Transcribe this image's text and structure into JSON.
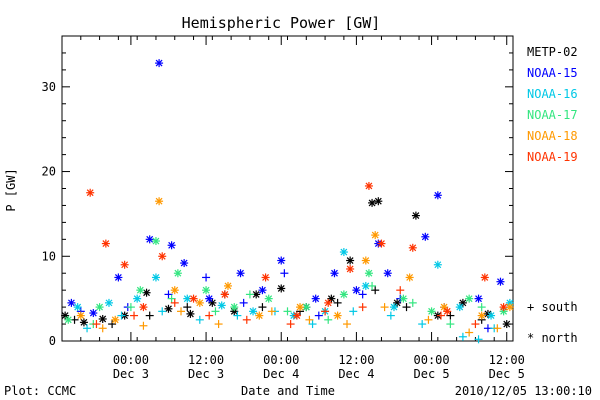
{
  "chart_data": {
    "type": "scatter",
    "title": "Hemispheric Power [GW]",
    "ylabel": "P [GW]",
    "xlabel": "Date and Time",
    "ylim": [
      0,
      36
    ],
    "yticks": [
      0,
      10,
      20,
      30
    ],
    "xlim": [
      "2010-12-02 13:00",
      "2010-12-05 13:00"
    ],
    "xticks": [
      {
        "time": "2010-12-03 00:00",
        "top": "00:00",
        "bottom": "Dec 3"
      },
      {
        "time": "2010-12-03 12:00",
        "top": "12:00",
        "bottom": "Dec 3"
      },
      {
        "time": "2010-12-04 00:00",
        "top": "00:00",
        "bottom": "Dec 4"
      },
      {
        "time": "2010-12-04 12:00",
        "top": "12:00",
        "bottom": "Dec 4"
      },
      {
        "time": "2010-12-05 00:00",
        "top": "00:00",
        "bottom": "Dec 5"
      },
      {
        "time": "2010-12-05 12:00",
        "top": "12:00",
        "bottom": "Dec 5"
      }
    ],
    "legend_position": "right",
    "marker_legend": [
      {
        "symbol": "+",
        "label": "south"
      },
      {
        "symbol": "*",
        "label": "north"
      }
    ],
    "series": [
      {
        "name": "METP-02",
        "color": "#000000",
        "north": [
          [
            "2010-12-02 13:30",
            3.0
          ],
          [
            "2010-12-02 16:30",
            2.2
          ],
          [
            "2010-12-02 19:30",
            2.6
          ],
          [
            "2010-12-02 23:00",
            3.0
          ],
          [
            "2010-12-03 02:30",
            5.7
          ],
          [
            "2010-12-03 06:00",
            3.8
          ],
          [
            "2010-12-03 09:30",
            3.2
          ],
          [
            "2010-12-03 13:00",
            4.5
          ],
          [
            "2010-12-03 16:30",
            3.5
          ],
          [
            "2010-12-03 20:00",
            5.5
          ],
          [
            "2010-12-04 00:00",
            6.2
          ],
          [
            "2010-12-04 04:00",
            4.0
          ],
          [
            "2010-12-04 08:00",
            5.0
          ],
          [
            "2010-12-04 11:00",
            9.5
          ],
          [
            "2010-12-04 14:30",
            16.3
          ],
          [
            "2010-12-04 15:30",
            16.5
          ],
          [
            "2010-12-04 18:30",
            4.5
          ],
          [
            "2010-12-04 21:30",
            14.8
          ],
          [
            "2010-12-05 01:00",
            3.0
          ],
          [
            "2010-12-05 05:00",
            4.5
          ],
          [
            "2010-12-05 09:00",
            3.2
          ],
          [
            "2010-12-05 12:00",
            2.0
          ]
        ],
        "south": [
          [
            "2010-12-02 15:00",
            2.5
          ],
          [
            "2010-12-02 21:00",
            2.0
          ],
          [
            "2010-12-03 03:00",
            3.0
          ],
          [
            "2010-12-03 09:00",
            4.0
          ],
          [
            "2010-12-03 15:00",
            5.5
          ],
          [
            "2010-12-03 21:00",
            4.0
          ],
          [
            "2010-12-04 03:00",
            3.5
          ],
          [
            "2010-12-04 09:00",
            4.5
          ],
          [
            "2010-12-04 15:00",
            6.0
          ],
          [
            "2010-12-04 20:00",
            4.0
          ],
          [
            "2010-12-05 03:00",
            3.0
          ],
          [
            "2010-12-05 08:00",
            2.5
          ]
        ]
      },
      {
        "name": "NOAA-15",
        "color": "#0000ff",
        "north": [
          [
            "2010-12-02 14:30",
            4.5
          ],
          [
            "2010-12-02 18:00",
            3.3
          ],
          [
            "2010-12-02 22:00",
            7.5
          ],
          [
            "2010-12-03 03:00",
            12.0
          ],
          [
            "2010-12-03 04:30",
            32.8
          ],
          [
            "2010-12-03 06:30",
            11.3
          ],
          [
            "2010-12-03 08:30",
            9.2
          ],
          [
            "2010-12-03 12:30",
            5.0
          ],
          [
            "2010-12-03 17:30",
            8.0
          ],
          [
            "2010-12-03 21:00",
            6.0
          ],
          [
            "2010-12-04 00:00",
            9.5
          ],
          [
            "2010-12-04 05:30",
            5.0
          ],
          [
            "2010-12-04 08:30",
            8.0
          ],
          [
            "2010-12-04 12:00",
            6.0
          ],
          [
            "2010-12-04 15:30",
            11.5
          ],
          [
            "2010-12-04 17:00",
            8.0
          ],
          [
            "2010-12-04 23:00",
            12.3
          ],
          [
            "2010-12-05 01:00",
            17.2
          ],
          [
            "2010-12-05 07:30",
            5.0
          ],
          [
            "2010-12-05 11:00",
            7.0
          ]
        ],
        "south": [
          [
            "2010-12-02 16:00",
            3.5
          ],
          [
            "2010-12-02 23:30",
            4.0
          ],
          [
            "2010-12-03 06:00",
            5.5
          ],
          [
            "2010-12-03 12:00",
            7.5
          ],
          [
            "2010-12-03 18:00",
            4.5
          ],
          [
            "2010-12-04 00:30",
            8.0
          ],
          [
            "2010-12-04 06:00",
            3.0
          ],
          [
            "2010-12-04 13:00",
            5.5
          ],
          [
            "2010-12-04 19:00",
            5.0
          ],
          [
            "2010-12-05 02:00",
            4.0
          ],
          [
            "2010-12-05 09:00",
            1.5
          ]
        ]
      },
      {
        "name": "NOAA-16",
        "color": "#00c8e6",
        "north": [
          [
            "2010-12-02 15:30",
            4.0
          ],
          [
            "2010-12-02 20:30",
            4.5
          ],
          [
            "2010-12-03 01:00",
            5.0
          ],
          [
            "2010-12-03 04:00",
            7.5
          ],
          [
            "2010-12-03 09:00",
            5.0
          ],
          [
            "2010-12-03 14:30",
            4.2
          ],
          [
            "2010-12-03 19:30",
            3.5
          ],
          [
            "2010-12-04 02:00",
            3.0
          ],
          [
            "2010-12-04 07:00",
            3.5
          ],
          [
            "2010-12-04 10:00",
            10.5
          ],
          [
            "2010-12-04 13:30",
            6.5
          ],
          [
            "2010-12-04 18:00",
            4.0
          ],
          [
            "2010-12-05 01:00",
            9.0
          ],
          [
            "2010-12-05 04:30",
            4.0
          ],
          [
            "2010-12-05 09:30",
            3.0
          ],
          [
            "2010-12-05 12:30",
            4.5
          ]
        ],
        "south": [
          [
            "2010-12-02 17:00",
            1.5
          ],
          [
            "2010-12-02 22:30",
            3.0
          ],
          [
            "2010-12-03 05:00",
            3.5
          ],
          [
            "2010-12-03 11:00",
            2.5
          ],
          [
            "2010-12-03 17:00",
            3.0
          ],
          [
            "2010-12-03 23:00",
            3.5
          ],
          [
            "2010-12-04 05:00",
            2.0
          ],
          [
            "2010-12-04 11:30",
            3.5
          ],
          [
            "2010-12-04 17:30",
            3.0
          ],
          [
            "2010-12-04 22:30",
            2.0
          ],
          [
            "2010-12-05 05:00",
            0.5
          ],
          [
            "2010-12-05 07:30",
            0.2
          ],
          [
            "2010-12-05 10:00",
            1.5
          ]
        ]
      },
      {
        "name": "NOAA-17",
        "color": "#33e680",
        "north": [
          [
            "2010-12-02 14:00",
            2.5
          ],
          [
            "2010-12-02 19:00",
            4.0
          ],
          [
            "2010-12-03 01:30",
            6.0
          ],
          [
            "2010-12-03 04:00",
            11.8
          ],
          [
            "2010-12-03 07:30",
            8.0
          ],
          [
            "2010-12-03 12:00",
            6.0
          ],
          [
            "2010-12-03 16:30",
            4.0
          ],
          [
            "2010-12-03 22:00",
            5.0
          ],
          [
            "2010-12-04 04:00",
            4.0
          ],
          [
            "2010-12-04 10:00",
            5.5
          ],
          [
            "2010-12-04 14:00",
            8.0
          ],
          [
            "2010-12-04 19:30",
            5.0
          ],
          [
            "2010-12-05 00:00",
            3.5
          ],
          [
            "2010-12-05 06:00",
            5.0
          ],
          [
            "2010-12-05 11:30",
            3.5
          ]
        ],
        "south": [
          [
            "2010-12-02 18:00",
            2.0
          ],
          [
            "2010-12-03 00:00",
            4.0
          ],
          [
            "2010-12-03 06:30",
            5.0
          ],
          [
            "2010-12-03 13:30",
            3.5
          ],
          [
            "2010-12-03 19:00",
            5.5
          ],
          [
            "2010-12-04 01:00",
            3.5
          ],
          [
            "2010-12-04 07:30",
            2.5
          ],
          [
            "2010-12-04 14:30",
            6.5
          ],
          [
            "2010-12-04 21:00",
            4.5
          ],
          [
            "2010-12-05 03:00",
            2.0
          ],
          [
            "2010-12-05 08:00",
            4.0
          ]
        ]
      },
      {
        "name": "NOAA-18",
        "color": "#ff9900",
        "north": [
          [
            "2010-12-02 16:00",
            3.0
          ],
          [
            "2010-12-02 21:30",
            2.5
          ],
          [
            "2010-12-03 04:30",
            16.5
          ],
          [
            "2010-12-03 07:00",
            6.0
          ],
          [
            "2010-12-03 11:00",
            4.5
          ],
          [
            "2010-12-03 15:30",
            6.5
          ],
          [
            "2010-12-03 20:30",
            3.0
          ],
          [
            "2010-12-04 03:00",
            4.0
          ],
          [
            "2010-12-04 09:00",
            3.0
          ],
          [
            "2010-12-04 13:30",
            9.5
          ],
          [
            "2010-12-04 15:00",
            12.5
          ],
          [
            "2010-12-04 20:30",
            7.5
          ],
          [
            "2010-12-05 02:00",
            4.0
          ],
          [
            "2010-12-05 08:00",
            3.0
          ],
          [
            "2010-12-05 12:30",
            4.0
          ]
        ],
        "south": [
          [
            "2010-12-02 19:30",
            1.5
          ],
          [
            "2010-12-03 02:00",
            1.8
          ],
          [
            "2010-12-03 08:00",
            3.5
          ],
          [
            "2010-12-03 14:00",
            2.0
          ],
          [
            "2010-12-03 22:30",
            3.5
          ],
          [
            "2010-12-04 04:30",
            2.5
          ],
          [
            "2010-12-04 10:30",
            2.0
          ],
          [
            "2010-12-04 16:30",
            4.0
          ],
          [
            "2010-12-04 23:30",
            2.5
          ],
          [
            "2010-12-05 06:00",
            1.0
          ],
          [
            "2010-12-05 10:30",
            1.5
          ]
        ]
      },
      {
        "name": "NOAA-19",
        "color": "#ff3300",
        "north": [
          [
            "2010-12-02 17:30",
            17.5
          ],
          [
            "2010-12-02 20:00",
            11.5
          ],
          [
            "2010-12-02 23:00",
            9.0
          ],
          [
            "2010-12-03 02:00",
            4.0
          ],
          [
            "2010-12-03 05:00",
            10.0
          ],
          [
            "2010-12-03 10:00",
            5.0
          ],
          [
            "2010-12-03 15:00",
            5.5
          ],
          [
            "2010-12-03 21:30",
            7.5
          ],
          [
            "2010-12-04 02:30",
            3.0
          ],
          [
            "2010-12-04 07:30",
            4.5
          ],
          [
            "2010-12-04 11:00",
            8.5
          ],
          [
            "2010-12-04 14:00",
            18.3
          ],
          [
            "2010-12-04 16:00",
            11.5
          ],
          [
            "2010-12-04 21:00",
            11.0
          ],
          [
            "2010-12-05 02:30",
            3.5
          ],
          [
            "2010-12-05 08:30",
            7.5
          ],
          [
            "2010-12-05 11:30",
            4.0
          ]
        ],
        "south": [
          [
            "2010-12-02 18:30",
            2.0
          ],
          [
            "2010-12-03 00:30",
            3.0
          ],
          [
            "2010-12-03 07:00",
            4.5
          ],
          [
            "2010-12-03 12:30",
            3.0
          ],
          [
            "2010-12-03 18:30",
            2.5
          ],
          [
            "2010-12-04 01:30",
            2.0
          ],
          [
            "2010-12-04 07:00",
            3.5
          ],
          [
            "2010-12-04 13:00",
            4.0
          ],
          [
            "2010-12-04 19:00",
            6.0
          ],
          [
            "2010-12-05 01:30",
            3.0
          ],
          [
            "2010-12-05 07:00",
            2.0
          ]
        ]
      }
    ]
  },
  "footer": {
    "left": "Plot: CCMC",
    "right": "2010/12/05 13:00:10"
  }
}
